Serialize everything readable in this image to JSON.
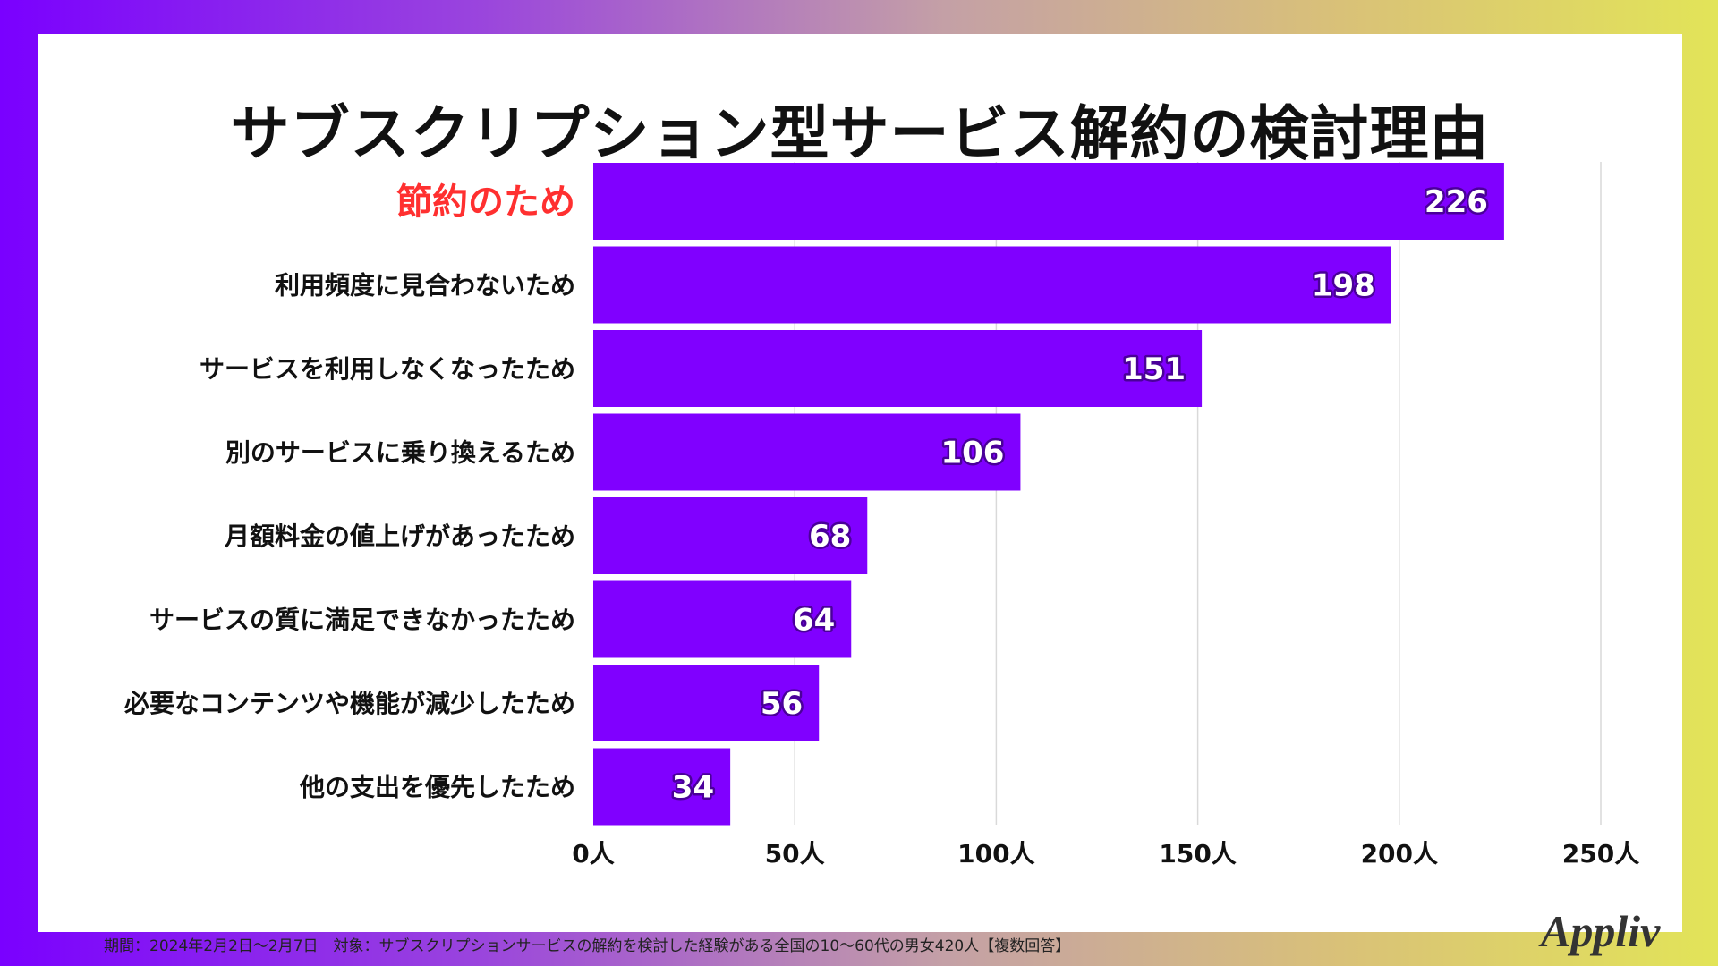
{
  "chart_data": {
    "type": "bar",
    "orientation": "horizontal",
    "title": "サブスクリプション型サービス解約の検討理由",
    "categories": [
      "節約のため",
      "利用頻度に見合わないため",
      "サービスを利用しなくなったため",
      "別のサービスに乗り換えるため",
      "月額料金の値上げがあったため",
      "サービスの質に満足できなかったため",
      "必要なコンテンツや機能が減少したため",
      "他の支出を優先したため"
    ],
    "values": [
      226,
      198,
      151,
      106,
      68,
      64,
      56,
      34
    ],
    "value_labels": [
      "226",
      "198",
      "151",
      "106",
      "68",
      "64",
      "56",
      "34"
    ],
    "xlim": [
      0,
      250
    ],
    "xticks": [
      0,
      50,
      100,
      150,
      200,
      250
    ],
    "xtick_labels": [
      "0人",
      "50人",
      "100人",
      "150人",
      "200人",
      "250人"
    ],
    "highlight_index": 0,
    "grid": true,
    "colors": {
      "bar": "#8000ff",
      "highlight_label": "#ff3030",
      "label": "#111111",
      "grid": "#d9d9d9"
    }
  },
  "footnote": "期間：2024年2月2日〜2月7日　対象：サブスクリプションサービスの解約を検討した経験がある全国の10〜60代の男女420人【複数回答】",
  "logo_text": "Appliv"
}
